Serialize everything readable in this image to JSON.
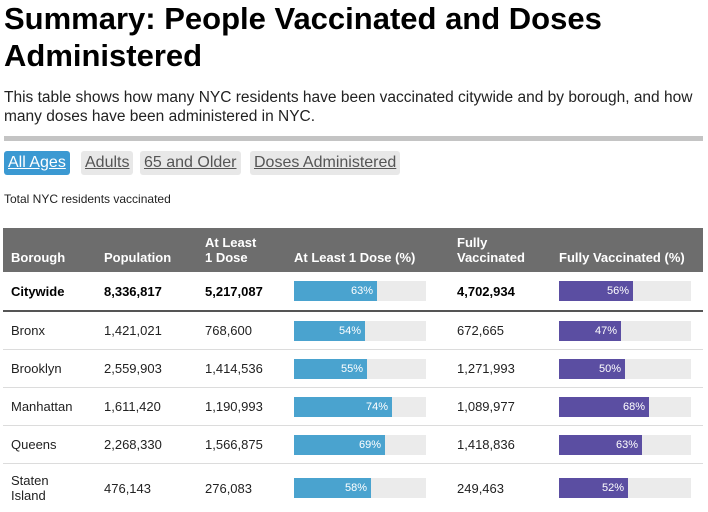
{
  "title": "Summary: People Vaccinated and Doses Administered",
  "description": "This table shows how many NYC residents have been vaccinated citywide and by borough, and how many doses have been administered in NYC.",
  "tabs": [
    {
      "label": "All Ages",
      "active": true
    },
    {
      "label": "Adults",
      "active": false
    },
    {
      "label": "65 and Older",
      "active": false
    },
    {
      "label": "Doses Administered",
      "active": false
    }
  ],
  "subtitle": "Total NYC residents vaccinated",
  "colors": {
    "header_bg": "#6d6d6d",
    "dose_bar": "#4aa3cf",
    "full_bar": "#5b4ea2",
    "active_tab": "#3b99d2"
  },
  "table": {
    "headers": {
      "borough": "Borough",
      "population": "Population",
      "at_least_1_line1": "At Least",
      "at_least_1_line2": "1 Dose",
      "at_least_1_pct": "At Least 1 Dose (%)",
      "fully_line1": "Fully",
      "fully_line2": "Vaccinated",
      "fully_pct": "Fully Vaccinated (%)"
    },
    "rows": [
      {
        "borough": "Citywide",
        "borough_line2": "",
        "population": "8,336,817",
        "at_least_1": "5,217,087",
        "at_least_1_pct": 63,
        "at_least_1_pct_label": "63%",
        "fully": "4,702,934",
        "fully_pct": 56,
        "fully_pct_label": "56%"
      },
      {
        "borough": "Bronx",
        "borough_line2": "",
        "population": "1,421,021",
        "at_least_1": "768,600",
        "at_least_1_pct": 54,
        "at_least_1_pct_label": "54%",
        "fully": "672,665",
        "fully_pct": 47,
        "fully_pct_label": "47%"
      },
      {
        "borough": "Brooklyn",
        "borough_line2": "",
        "population": "2,559,903",
        "at_least_1": "1,414,536",
        "at_least_1_pct": 55,
        "at_least_1_pct_label": "55%",
        "fully": "1,271,993",
        "fully_pct": 50,
        "fully_pct_label": "50%"
      },
      {
        "borough": "Manhattan",
        "borough_line2": "",
        "population": "1,611,420",
        "at_least_1": "1,190,993",
        "at_least_1_pct": 74,
        "at_least_1_pct_label": "74%",
        "fully": "1,089,977",
        "fully_pct": 68,
        "fully_pct_label": "68%"
      },
      {
        "borough": "Queens",
        "borough_line2": "",
        "population": "2,268,330",
        "at_least_1": "1,566,875",
        "at_least_1_pct": 69,
        "at_least_1_pct_label": "69%",
        "fully": "1,418,836",
        "fully_pct": 63,
        "fully_pct_label": "63%"
      },
      {
        "borough": "Staten",
        "borough_line2": "Island",
        "population": "476,143",
        "at_least_1": "276,083",
        "at_least_1_pct": 58,
        "at_least_1_pct_label": "58%",
        "fully": "249,463",
        "fully_pct": 52,
        "fully_pct_label": "52%"
      }
    ]
  }
}
